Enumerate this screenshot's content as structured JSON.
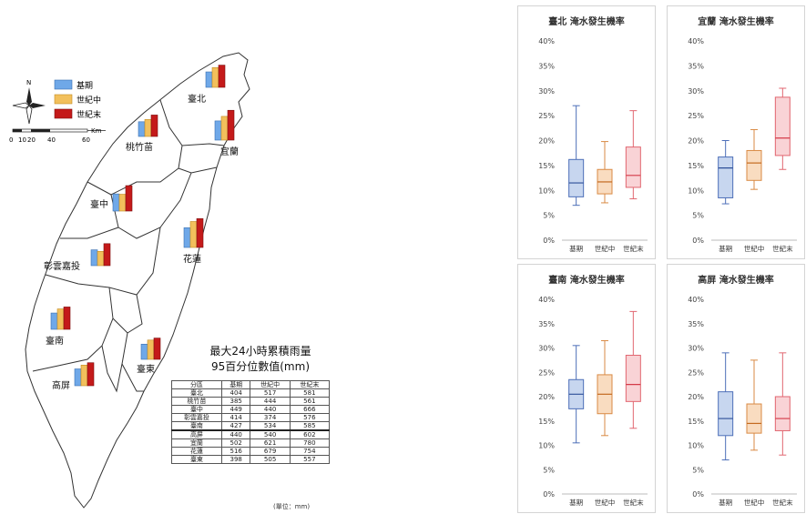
{
  "legend": {
    "items": [
      {
        "label": "基期",
        "color": "#6fa8e8"
      },
      {
        "label": "世紀中",
        "color": "#f2c05c"
      },
      {
        "label": "世紀末",
        "color": "#c41a1a"
      }
    ]
  },
  "scale": {
    "ticks": [
      "0",
      "10",
      "20",
      "40",
      "60"
    ],
    "unit": "Km"
  },
  "compass": {
    "north": "N"
  },
  "map_title": {
    "line1": "最大24小時累積雨量",
    "line2": "95百分位數值(mm)"
  },
  "table": {
    "headers": [
      "分區",
      "基期",
      "世紀中",
      "世紀末"
    ],
    "rows": [
      [
        "臺北",
        "404",
        "517",
        "581"
      ],
      [
        "桃竹苗",
        "385",
        "444",
        "561"
      ],
      [
        "臺中",
        "449",
        "440",
        "666"
      ],
      [
        "彰雲嘉投",
        "414",
        "374",
        "576"
      ],
      [
        "臺南",
        "427",
        "534",
        "585"
      ],
      [
        "高屏",
        "440",
        "540",
        "602"
      ],
      [
        "宜蘭",
        "502",
        "621",
        "780"
      ],
      [
        "花蓮",
        "516",
        "679",
        "754"
      ],
      [
        "臺東",
        "398",
        "505",
        "557"
      ]
    ],
    "unit": "(單位：mm)"
  },
  "regions": [
    {
      "label": "臺北",
      "values": [
        404,
        517,
        581
      ]
    },
    {
      "label": "桃竹苗",
      "values": [
        385,
        444,
        561
      ]
    },
    {
      "label": "臺中",
      "values": [
        449,
        440,
        666
      ]
    },
    {
      "label": "彰雲嘉投",
      "values": [
        414,
        374,
        576
      ]
    },
    {
      "label": "臺南",
      "values": [
        427,
        534,
        585
      ]
    },
    {
      "label": "高屏",
      "values": [
        440,
        540,
        602
      ]
    },
    {
      "label": "宜蘭",
      "values": [
        502,
        621,
        780
      ]
    },
    {
      "label": "花蓮",
      "values": [
        516,
        679,
        754
      ]
    },
    {
      "label": "臺東",
      "values": [
        398,
        505,
        557
      ]
    }
  ],
  "chart_data": [
    {
      "type": "box",
      "title": "臺北 淹水發生機率",
      "categories": [
        "基期",
        "世紀中",
        "世紀末"
      ],
      "ylim": [
        0,
        40
      ],
      "yticks": [
        "0%",
        "5%",
        "10%",
        "15%",
        "20%",
        "25%",
        "30%",
        "35%",
        "40%"
      ],
      "series": [
        {
          "category": "基期",
          "min": 7,
          "q1": 8.7,
          "median": 11.5,
          "q3": 16.2,
          "max": 27
        },
        {
          "category": "世紀中",
          "min": 7.5,
          "q1": 9.3,
          "median": 11.7,
          "q3": 14.2,
          "max": 19.8
        },
        {
          "category": "世紀末",
          "min": 8.3,
          "q1": 10.6,
          "median": 13,
          "q3": 18.7,
          "max": 26
        }
      ]
    },
    {
      "type": "box",
      "title": "宜蘭 淹水發生機率",
      "categories": [
        "基期",
        "世紀中",
        "世紀末"
      ],
      "ylim": [
        0,
        40
      ],
      "yticks": [
        "0%",
        "5%",
        "10%",
        "15%",
        "20%",
        "25%",
        "30%",
        "35%",
        "40%"
      ],
      "series": [
        {
          "category": "基期",
          "min": 7.3,
          "q1": 8.5,
          "median": 14.5,
          "q3": 16.7,
          "max": 20
        },
        {
          "category": "世紀中",
          "min": 10.2,
          "q1": 12,
          "median": 15.5,
          "q3": 18,
          "max": 22.2
        },
        {
          "category": "世紀末",
          "min": 14.2,
          "q1": 17,
          "median": 20.5,
          "q3": 28.7,
          "max": 30.5
        }
      ]
    },
    {
      "type": "box",
      "title": "臺南 淹水發生機率",
      "categories": [
        "基期",
        "世紀中",
        "世紀末"
      ],
      "ylim": [
        0,
        40
      ],
      "yticks": [
        "0%",
        "5%",
        "10%",
        "15%",
        "20%",
        "25%",
        "30%",
        "35%",
        "40%"
      ],
      "series": [
        {
          "category": "基期",
          "min": 10.5,
          "q1": 17.5,
          "median": 20.5,
          "q3": 23.5,
          "max": 30.5
        },
        {
          "category": "世紀中",
          "min": 12,
          "q1": 16.5,
          "median": 20.5,
          "q3": 24.5,
          "max": 31.5
        },
        {
          "category": "世紀末",
          "min": 13.5,
          "q1": 19,
          "median": 22.5,
          "q3": 28.5,
          "max": 37.5
        }
      ]
    },
    {
      "type": "box",
      "title": "高屏 淹水發生機率",
      "categories": [
        "基期",
        "世紀中",
        "世紀末"
      ],
      "ylim": [
        0,
        40
      ],
      "yticks": [
        "0%",
        "5%",
        "10%",
        "15%",
        "20%",
        "25%",
        "30%",
        "35%",
        "40%"
      ],
      "series": [
        {
          "category": "基期",
          "min": 7,
          "q1": 12,
          "median": 15.5,
          "q3": 21,
          "max": 29
        },
        {
          "category": "世紀中",
          "min": 9,
          "q1": 12.5,
          "median": 14.5,
          "q3": 18.5,
          "max": 27.5
        },
        {
          "category": "世紀末",
          "min": 8,
          "q1": 13,
          "median": 15.5,
          "q3": 20,
          "max": 29
        }
      ]
    }
  ]
}
